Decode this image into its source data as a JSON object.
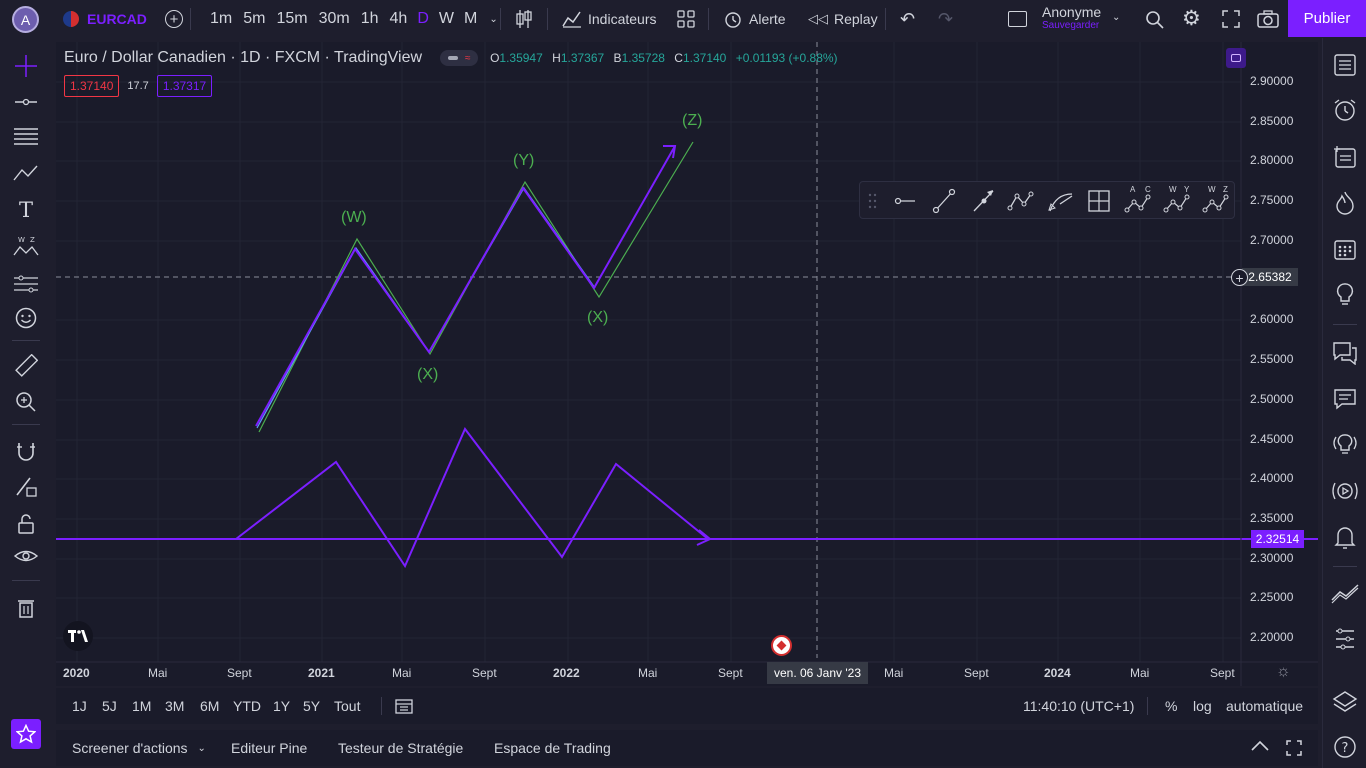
{
  "header": {
    "avatar_letter": "A",
    "symbol": "EURCAD",
    "timeframes": [
      "1m",
      "5m",
      "15m",
      "30m",
      "1h",
      "4h",
      "D",
      "W",
      "M"
    ],
    "active_timeframe": "D",
    "indicators_label": "Indicateurs",
    "alert_label": "Alerte",
    "replay_label": "Replay",
    "user_name": "Anonyme",
    "save_label": "Sauvegarder",
    "publish_label": "Publier"
  },
  "legend": {
    "title": "Euro / Dollar Canadien · 1D · FXCM · TradingView",
    "o_label": "O",
    "o_value": "1.35947",
    "h_label": "H",
    "h_value": "1.37367",
    "b_label": "B",
    "b_value": "1.35728",
    "c_label": "C",
    "c_value": "1.37140",
    "change": "+0.01193 (+0.88%)",
    "bid": "1.37140",
    "spread": "17.7",
    "ask": "1.37317"
  },
  "price_scale": {
    "labels": [
      "2.90000",
      "2.85000",
      "2.80000",
      "2.75000",
      "2.70000",
      "2.65000",
      "2.60000",
      "2.55000",
      "2.50000",
      "2.45000",
      "2.40000",
      "2.35000",
      "2.30000",
      "2.25000",
      "2.20000"
    ],
    "crosshair_price": "2.65382",
    "line_price": "2.32514"
  },
  "time_scale": {
    "labels": [
      "2020",
      "Mai",
      "Sept",
      "2021",
      "Mai",
      "Sept",
      "2022",
      "Mai",
      "Sept",
      "Mai",
      "Sept",
      "2024",
      "Mai",
      "Sept"
    ],
    "crosshair_date": "ven. 06 Janv '23"
  },
  "wave_labels": [
    "(W)",
    "(X)",
    "(Y)",
    "(X)",
    "(Z)"
  ],
  "drawing_toolbar": {
    "tools": [
      "horizontal-ray",
      "trend-line",
      "arrow-line",
      "polyline",
      "curve",
      "long-short",
      "abc-pattern",
      "wxy-pattern",
      "wxyz-pattern"
    ],
    "letters": {
      "abc": [
        "A",
        "C"
      ],
      "wxy": [
        "W",
        "Y"
      ],
      "wxyz": [
        "W",
        "Z"
      ]
    }
  },
  "range_bar": {
    "ranges": [
      "1J",
      "5J",
      "1M",
      "3M",
      "6M",
      "YTD",
      "1Y",
      "5Y",
      "Tout"
    ],
    "time": "11:40:10 (UTC+1)",
    "percent": "%",
    "log": "log",
    "auto": "automatique"
  },
  "bottom_tabs": [
    "Screener d'actions",
    "Editeur Pine",
    "Testeur de Stratégie",
    "Espace de Trading"
  ],
  "colors": {
    "accent": "#7b1fff",
    "green": "#4caf50",
    "blue": "#5b9cf6",
    "red": "#f23645",
    "panel": "#1a1b2a"
  }
}
